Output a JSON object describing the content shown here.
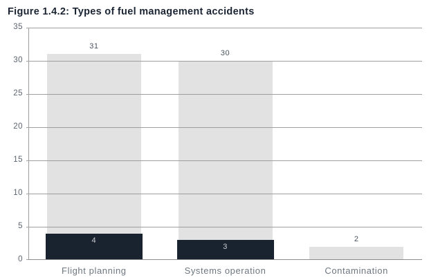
{
  "chart_data": {
    "type": "bar",
    "title": "Figure 1.4.2: Types of fuel management accidents",
    "categories": [
      "Flight planning",
      "Systems operation",
      "Contamination"
    ],
    "series": [
      {
        "name": "total-accidents",
        "values": [
          31,
          30,
          2
        ],
        "color": "#e2e2e3",
        "label_color": "#49525e",
        "label_position": "above"
      },
      {
        "name": "dark-subset",
        "values": [
          4,
          3,
          null
        ],
        "color": "#19222f",
        "label_color": "#c7cbd0",
        "label_position": "inside-top"
      }
    ],
    "xlabel": "",
    "ylabel": "",
    "ylim": [
      0,
      35
    ],
    "yticks": [
      0,
      5,
      10,
      15,
      20,
      25,
      30,
      35
    ],
    "grid": true,
    "legend": false
  },
  "colors": {
    "background": "#ffffff",
    "title": "#1b2433",
    "gridline": "#9e9e9e",
    "axis": "#8b8b8b",
    "tick_label": "#5c6470",
    "category_label": "#6e7781",
    "bar_total": "#e2e2e3",
    "bar_dark": "#19222f",
    "value_label_dark_text": "#49525e",
    "value_label_light_text": "#c7cbd0"
  }
}
